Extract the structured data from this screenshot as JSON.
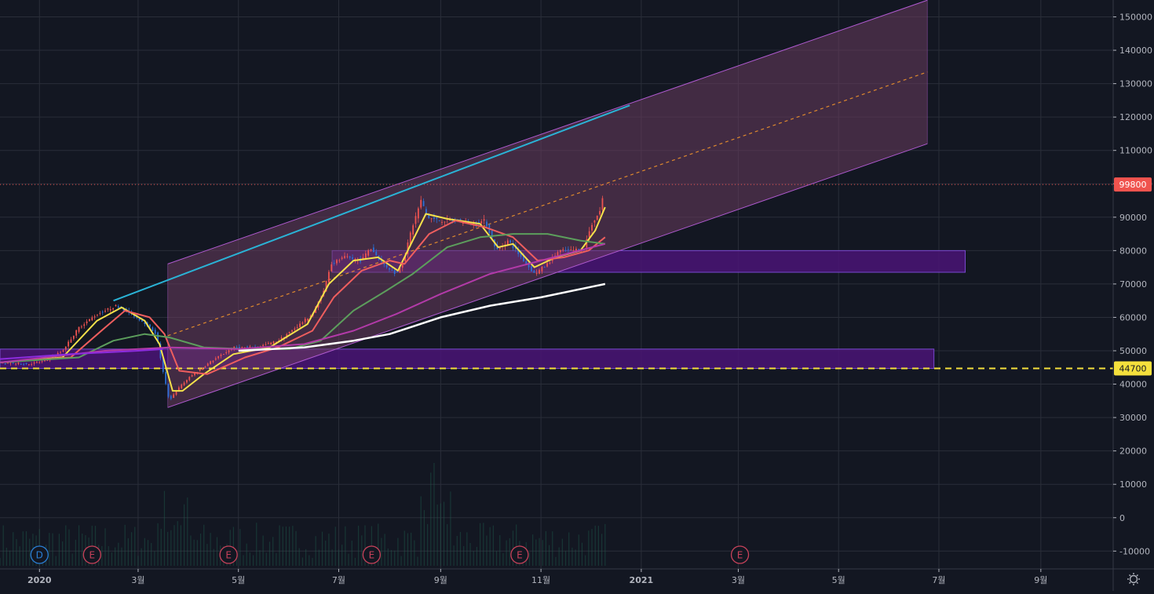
{
  "chart_data": {
    "type": "candlestick",
    "y_axis": {
      "ticks": [
        150000,
        140000,
        130000,
        120000,
        110000,
        100000,
        90000,
        80000,
        70000,
        60000,
        50000,
        40000,
        30000,
        20000,
        10000,
        0,
        -10000
      ],
      "ylim": [
        -11000,
        157000
      ],
      "position": "right"
    },
    "x_axis": {
      "start": "2019-12-08",
      "end": "2021-10-15",
      "ticks": [
        {
          "label": "2020",
          "date": "2020-01-01",
          "bold": true
        },
        {
          "label": "3월",
          "date": "2020-03-01"
        },
        {
          "label": "5월",
          "date": "2020-05-01"
        },
        {
          "label": "7월",
          "date": "2020-07-01"
        },
        {
          "label": "9월",
          "date": "2020-09-01"
        },
        {
          "label": "11월",
          "date": "2020-11-01"
        },
        {
          "label": "2021",
          "date": "2021-01-01",
          "bold": true
        },
        {
          "label": "3월",
          "date": "2021-03-01"
        },
        {
          "label": "5월",
          "date": "2021-05-01"
        },
        {
          "label": "7월",
          "date": "2021-07-01"
        },
        {
          "label": "9월",
          "date": "2021-09-01"
        }
      ]
    },
    "price_keypoints": [
      [
        "2019-12-08",
        46500
      ],
      [
        "2019-12-25",
        46000
      ],
      [
        "2020-01-05",
        47000
      ],
      [
        "2020-01-15",
        50000
      ],
      [
        "2020-01-25",
        57000
      ],
      [
        "2020-02-05",
        61000
      ],
      [
        "2020-02-17",
        63500
      ],
      [
        "2020-02-26",
        61000
      ],
      [
        "2020-03-06",
        58000
      ],
      [
        "2020-03-12",
        55000
      ],
      [
        "2020-03-16",
        44000
      ],
      [
        "2020-03-20",
        35000
      ],
      [
        "2020-03-24",
        38000
      ],
      [
        "2020-04-01",
        42000
      ],
      [
        "2020-04-15",
        47000
      ],
      [
        "2020-04-28",
        51000
      ],
      [
        "2020-05-12",
        51000
      ],
      [
        "2020-05-25",
        53000
      ],
      [
        "2020-06-05",
        57000
      ],
      [
        "2020-06-15",
        61000
      ],
      [
        "2020-06-22",
        68000
      ],
      [
        "2020-06-26",
        76000
      ],
      [
        "2020-07-05",
        78000
      ],
      [
        "2020-07-15",
        77000
      ],
      [
        "2020-07-20",
        81000
      ],
      [
        "2020-07-28",
        76000
      ],
      [
        "2020-08-05",
        73000
      ],
      [
        "2020-08-10",
        78000
      ],
      [
        "2020-08-14",
        86000
      ],
      [
        "2020-08-20",
        95000
      ],
      [
        "2020-08-24",
        90000
      ],
      [
        "2020-08-31",
        89000
      ],
      [
        "2020-09-10",
        89000
      ],
      [
        "2020-09-22",
        88000
      ],
      [
        "2020-09-28",
        89000
      ],
      [
        "2020-10-05",
        80000
      ],
      [
        "2020-10-12",
        83000
      ],
      [
        "2020-10-20",
        78000
      ],
      [
        "2020-10-28",
        73000
      ],
      [
        "2020-11-05",
        76000
      ],
      [
        "2020-11-12",
        80000
      ],
      [
        "2020-11-20",
        80000
      ],
      [
        "2020-11-27",
        81000
      ],
      [
        "2020-12-02",
        88000
      ],
      [
        "2020-12-07",
        92000
      ],
      [
        "2020-12-10",
        99800
      ]
    ],
    "moving_averages": [
      {
        "color": "#f5e24b",
        "width": 2,
        "points": [
          [
            "2019-12-08",
            46500
          ],
          [
            "2020-01-15",
            48000
          ],
          [
            "2020-02-05",
            59000
          ],
          [
            "2020-02-20",
            63000
          ],
          [
            "2020-03-05",
            59000
          ],
          [
            "2020-03-14",
            52000
          ],
          [
            "2020-03-22",
            38000
          ],
          [
            "2020-03-28",
            38000
          ],
          [
            "2020-04-10",
            43000
          ],
          [
            "2020-04-28",
            49000
          ],
          [
            "2020-05-20",
            51000
          ],
          [
            "2020-06-12",
            58000
          ],
          [
            "2020-06-25",
            70000
          ],
          [
            "2020-07-10",
            77000
          ],
          [
            "2020-07-25",
            78000
          ],
          [
            "2020-08-06",
            74000
          ],
          [
            "2020-08-15",
            83000
          ],
          [
            "2020-08-23",
            91000
          ],
          [
            "2020-09-05",
            89500
          ],
          [
            "2020-09-25",
            88000
          ],
          [
            "2020-10-06",
            81000
          ],
          [
            "2020-10-15",
            82000
          ],
          [
            "2020-10-28",
            75000
          ],
          [
            "2020-11-10",
            78000
          ],
          [
            "2020-11-25",
            80000
          ],
          [
            "2020-12-04",
            86000
          ],
          [
            "2020-12-10",
            93000
          ]
        ]
      },
      {
        "color": "#ef5e5e",
        "width": 2,
        "points": [
          [
            "2019-12-08",
            46500
          ],
          [
            "2020-01-20",
            48000
          ],
          [
            "2020-02-10",
            57000
          ],
          [
            "2020-02-22",
            62000
          ],
          [
            "2020-03-08",
            60000
          ],
          [
            "2020-03-17",
            55000
          ],
          [
            "2020-03-26",
            44000
          ],
          [
            "2020-04-12",
            43000
          ],
          [
            "2020-05-05",
            48000
          ],
          [
            "2020-05-25",
            51000
          ],
          [
            "2020-06-15",
            56000
          ],
          [
            "2020-06-28",
            66000
          ],
          [
            "2020-07-15",
            74000
          ],
          [
            "2020-08-01",
            77000
          ],
          [
            "2020-08-10",
            76000
          ],
          [
            "2020-08-25",
            85000
          ],
          [
            "2020-09-10",
            89000
          ],
          [
            "2020-09-28",
            87000
          ],
          [
            "2020-10-15",
            84000
          ],
          [
            "2020-10-30",
            77000
          ],
          [
            "2020-11-15",
            78000
          ],
          [
            "2020-11-30",
            80000
          ],
          [
            "2020-12-10",
            84000
          ]
        ]
      },
      {
        "color": "#5c9e5c",
        "width": 2,
        "points": [
          [
            "2019-12-08",
            46500
          ],
          [
            "2020-01-25",
            48000
          ],
          [
            "2020-02-15",
            53000
          ],
          [
            "2020-03-05",
            55000
          ],
          [
            "2020-03-20",
            54000
          ],
          [
            "2020-04-10",
            51000
          ],
          [
            "2020-05-05",
            50500
          ],
          [
            "2020-06-01",
            50500
          ],
          [
            "2020-06-20",
            53000
          ],
          [
            "2020-07-10",
            62000
          ],
          [
            "2020-07-30",
            68000
          ],
          [
            "2020-08-15",
            73000
          ],
          [
            "2020-09-05",
            81000
          ],
          [
            "2020-09-25",
            84000
          ],
          [
            "2020-10-15",
            85000
          ],
          [
            "2020-11-05",
            85000
          ],
          [
            "2020-11-25",
            83000
          ],
          [
            "2020-12-10",
            82000
          ]
        ]
      },
      {
        "color": "#b23aa8",
        "width": 2,
        "points": [
          [
            "2019-12-08",
            46500
          ],
          [
            "2020-02-10",
            50000
          ],
          [
            "2020-03-20",
            51000
          ],
          [
            "2020-05-01",
            50500
          ],
          [
            "2020-06-10",
            52000
          ],
          [
            "2020-07-10",
            56000
          ],
          [
            "2020-08-05",
            61000
          ],
          [
            "2020-09-01",
            67000
          ],
          [
            "2020-10-01",
            73000
          ],
          [
            "2020-11-01",
            77000
          ],
          [
            "2020-12-10",
            82000
          ]
        ]
      },
      {
        "color": "#8d2cde",
        "width": 2,
        "points": [
          [
            "2019-12-08",
            47500
          ],
          [
            "2020-01-20",
            49000
          ],
          [
            "2020-03-01",
            50000
          ],
          [
            "2020-03-16",
            50500
          ]
        ]
      },
      {
        "color": "#ffffff",
        "width": 2.5,
        "points": [
          [
            "2020-05-01",
            50000
          ],
          [
            "2020-06-10",
            51000
          ],
          [
            "2020-07-10",
            53000
          ],
          [
            "2020-08-01",
            55000
          ],
          [
            "2020-09-01",
            60000
          ],
          [
            "2020-10-01",
            63500
          ],
          [
            "2020-11-01",
            66000
          ],
          [
            "2020-12-10",
            70000
          ]
        ]
      }
    ],
    "horizontal_lines": [
      {
        "value": 99800,
        "color": "#f0534e",
        "style": "dotted",
        "label": "99800",
        "label_bg": "#f0534e",
        "label_color": "#ffffff"
      },
      {
        "value": 44700,
        "color": "#f5e03c",
        "style": "dashed",
        "label": "44700",
        "label_bg": "#f5e03c",
        "label_color": "#131722"
      }
    ],
    "zones": [
      {
        "x1": "2020-06-27",
        "x2": "2021-07-17",
        "y1": 73500,
        "y2": 80000,
        "fill": "#4a1476",
        "stroke": "#7a4ad0"
      },
      {
        "x1": "2019-12-08",
        "x2": "2021-06-28",
        "y1": 44700,
        "y2": 50500,
        "fill": "#4a1476",
        "stroke": "#7a4ad0"
      }
    ],
    "channel": {
      "x1": "2020-03-19",
      "x2": "2021-06-24",
      "top": [
        76000,
        155000
      ],
      "bottom": [
        33000,
        112000
      ],
      "mid": [
        54500,
        133500
      ],
      "fill": "#6a3d5e",
      "stroke": "#b05ad0",
      "mid_color": "#e08a2e"
    },
    "trendline": {
      "from": [
        "2020-02-15",
        65000
      ],
      "to": [
        "2020-12-25",
        123500
      ],
      "color": "#2ab3d6"
    },
    "events": [
      {
        "label": "D",
        "date": "2020-01-01",
        "color": "#2a7fd6"
      },
      {
        "label": "E",
        "date": "2020-02-02",
        "color": "#c8425a"
      },
      {
        "label": "E",
        "date": "2020-04-25",
        "color": "#c8425a"
      },
      {
        "label": "E",
        "date": "2020-07-21",
        "color": "#c8425a"
      },
      {
        "label": "E",
        "date": "2020-10-19",
        "color": "#c8425a"
      },
      {
        "label": "E",
        "date": "2021-03-02",
        "color": "#c8425a"
      }
    ],
    "colors": {
      "background": "#131722",
      "grid": "#2a2e39",
      "axis_text": "#b2b5be",
      "candle_up": "#ef5350",
      "candle_down": "#2a6fd6",
      "volume": "#1f5e4d"
    }
  },
  "icons": {
    "settings": "gear-icon"
  }
}
